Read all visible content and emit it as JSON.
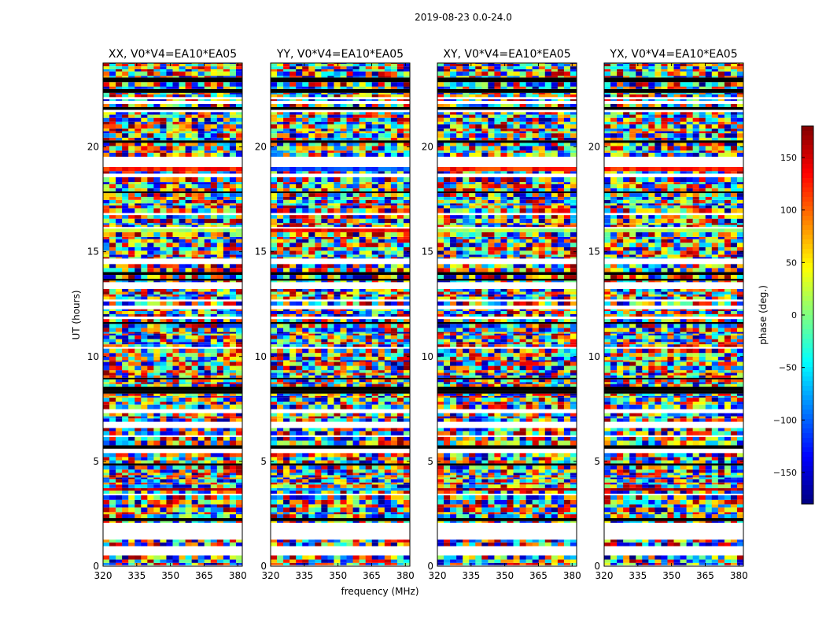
{
  "chart_data": {
    "type": "heatmap",
    "title": "2019-08-23 0.0-24.0",
    "xlabel": "frequency (MHz)",
    "ylabel": "UT (hours)",
    "xlim": [
      320,
      382
    ],
    "ylim": [
      0,
      24
    ],
    "xticks": [
      "320",
      "335",
      "350",
      "365",
      "380"
    ],
    "yticks": [
      "0",
      "5",
      "10",
      "15",
      "20"
    ],
    "panels": [
      {
        "title": "XX, V0*V4=EA10*EA05"
      },
      {
        "title": "YY, V0*V4=EA10*EA05"
      },
      {
        "title": "XY, V0*V4=EA10*EA05"
      },
      {
        "title": "YX, V0*V4=EA10*EA05"
      }
    ],
    "colorbar": {
      "label": "phase (deg.)",
      "range": [
        -180,
        180
      ],
      "ticks": [
        "150",
        "100",
        "50",
        "0",
        "−50",
        "−100",
        "−150"
      ],
      "colormap": "jet"
    }
  }
}
